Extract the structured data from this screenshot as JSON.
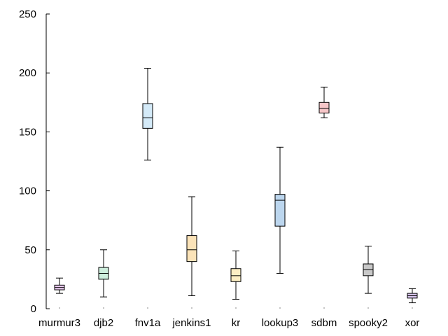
{
  "chart_data": {
    "type": "box",
    "title": "",
    "xlabel": "",
    "ylabel": "",
    "ylim": [
      0,
      250
    ],
    "yticks": [
      0,
      50,
      100,
      150,
      200,
      250
    ],
    "categories": [
      "murmur3",
      "djb2",
      "fnv1a",
      "jenkins1",
      "kr",
      "lookup3",
      "sdbm",
      "spooky2",
      "xor"
    ],
    "boxes": [
      {
        "category": "murmur3",
        "min": 13,
        "q1": 16,
        "median": 18,
        "q3": 20,
        "max": 26,
        "color": "#e9c9f0"
      },
      {
        "category": "djb2",
        "min": 10,
        "q1": 25,
        "median": 30,
        "q3": 35,
        "max": 50,
        "color": "#cdeedd"
      },
      {
        "category": "fnv1a",
        "min": 126,
        "q1": 153,
        "median": 162,
        "q3": 174,
        "max": 204,
        "color": "#d4eaf8"
      },
      {
        "category": "jenkins1",
        "min": 11,
        "q1": 40,
        "median": 50,
        "q3": 62,
        "max": 95,
        "color": "#fbe3b8"
      },
      {
        "category": "kr",
        "min": 8,
        "q1": 23,
        "median": 28,
        "q3": 34,
        "max": 49,
        "color": "#fcefc4"
      },
      {
        "category": "lookup3",
        "min": 30,
        "q1": 70,
        "median": 92,
        "q3": 97,
        "max": 137,
        "color": "#bcd6ee"
      },
      {
        "category": "sdbm",
        "min": 162,
        "q1": 166,
        "median": 170,
        "q3": 175,
        "max": 188,
        "color": "#f6c6c8"
      },
      {
        "category": "spooky2",
        "min": 13,
        "q1": 28,
        "median": 33,
        "q3": 38,
        "max": 53,
        "color": "#c8c8c8"
      },
      {
        "category": "xor",
        "min": 5,
        "q1": 9,
        "median": 11,
        "q3": 13,
        "max": 17,
        "color": "#d9c6ee"
      }
    ],
    "grid": false,
    "legend": "none"
  }
}
